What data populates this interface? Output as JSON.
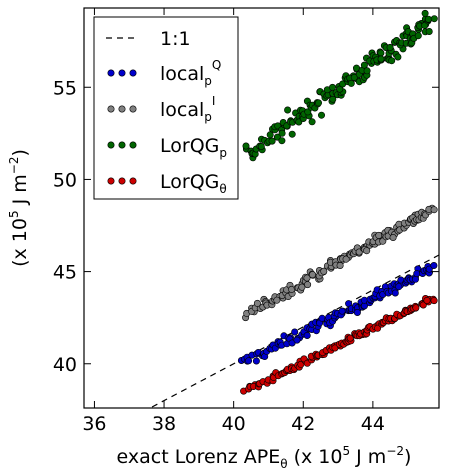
{
  "chart_data": {
    "type": "scatter",
    "xlabel": {
      "main": "exact Lorenz APE",
      "sub": "θ",
      "units_pre": " (x 10",
      "units_exp": "5",
      "units_post": " J m",
      "units_exp2": "−2",
      "units_close": ")"
    },
    "ylabel": {
      "pre": "(x 10",
      "exp": "5",
      "post": " J m",
      "exp2": "−2",
      "close": ")"
    },
    "xlim": [
      35.7,
      45.9
    ],
    "ylim": [
      37.6,
      59.3
    ],
    "xticks": [
      36,
      38,
      40,
      42,
      44
    ],
    "yticks": [
      40,
      45,
      50,
      55
    ],
    "grid": false,
    "legend_position": "top-left",
    "reference_line": {
      "label": "1:1",
      "style": "dashed",
      "color": "#000000"
    },
    "series": [
      {
        "name": "local",
        "sub": "p",
        "sup": "Q",
        "color": "#0000cc",
        "fit": {
          "slope": 0.94,
          "intercept": 2.2,
          "x0": 40.2,
          "x1": 45.7,
          "spread": 0.45,
          "n": 130
        }
      },
      {
        "name": "local",
        "sub": "p",
        "sup": "I",
        "color": "#808080",
        "fit": {
          "slope": 1.07,
          "intercept": -0.5,
          "x0": 40.3,
          "x1": 45.7,
          "spread": 0.45,
          "n": 130
        }
      },
      {
        "name": "LorQG",
        "sub": "p",
        "sup": "",
        "color": "#006400",
        "fit": {
          "slope": 1.38,
          "intercept": -4.4,
          "x0": 40.3,
          "x1": 45.7,
          "spread": 0.9,
          "n": 160
        }
      },
      {
        "name": "LorQG",
        "sub": "θ",
        "sup": "",
        "color": "#cc0000",
        "fit": {
          "slope": 0.93,
          "intercept": 1.0,
          "x0": 40.3,
          "x1": 45.7,
          "spread": 0.25,
          "n": 130
        }
      }
    ]
  }
}
